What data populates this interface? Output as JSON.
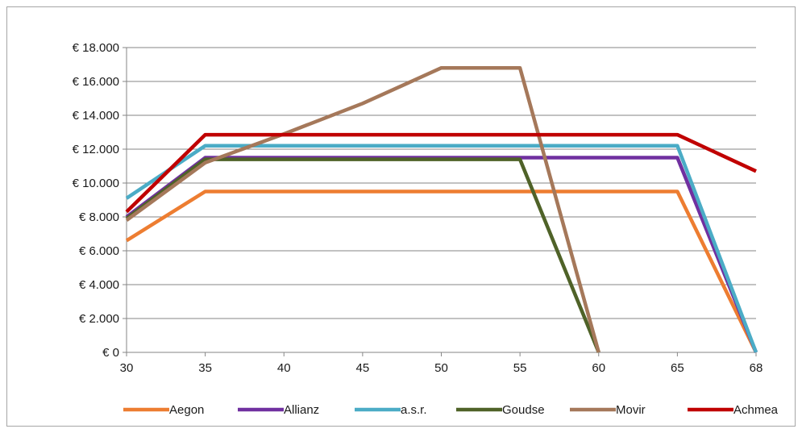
{
  "chart_data": {
    "type": "line",
    "title": "",
    "xlabel": "",
    "ylabel": "",
    "x": [
      30,
      35,
      40,
      45,
      50,
      55,
      60,
      65,
      68
    ],
    "x_tick_labels": [
      "30",
      "35",
      "40",
      "45",
      "50",
      "55",
      "60",
      "65",
      "68"
    ],
    "y_tick_labels": [
      "€ 0",
      "€ 2.000",
      "€ 4.000",
      "€ 6.000",
      "€ 8.000",
      "€ 10.000",
      "€ 12.000",
      "€ 14.000",
      "€ 16.000",
      "€ 18.000"
    ],
    "ylim": [
      0,
      18000
    ],
    "grid": "horizontal",
    "legend_position": "bottom",
    "series": [
      {
        "name": "Aegon",
        "color": "#ed7d31",
        "values": [
          6600,
          9500,
          9500,
          9500,
          9500,
          9500,
          9500,
          9500,
          0
        ]
      },
      {
        "name": "Allianz",
        "color": "#7030a0",
        "values": [
          8000,
          11500,
          11500,
          11500,
          11500,
          11500,
          11500,
          11500,
          0
        ]
      },
      {
        "name": "a.s.r.",
        "color": "#4bacc6",
        "values": [
          9100,
          12200,
          12200,
          12200,
          12200,
          12200,
          12200,
          12200,
          0
        ]
      },
      {
        "name": "Goudse",
        "color": "#4f6228",
        "values": [
          7900,
          11400,
          11400,
          11400,
          11400,
          11400,
          0,
          null,
          null
        ]
      },
      {
        "name": "Movir",
        "color": "#a5785a",
        "values": [
          7800,
          11200,
          12900,
          14700,
          16800,
          16800,
          0,
          null,
          null
        ]
      },
      {
        "name": "Achmea",
        "color": "#c00000",
        "values": [
          8300,
          12850,
          12850,
          12850,
          12850,
          12850,
          12850,
          12850,
          10700
        ]
      }
    ]
  }
}
